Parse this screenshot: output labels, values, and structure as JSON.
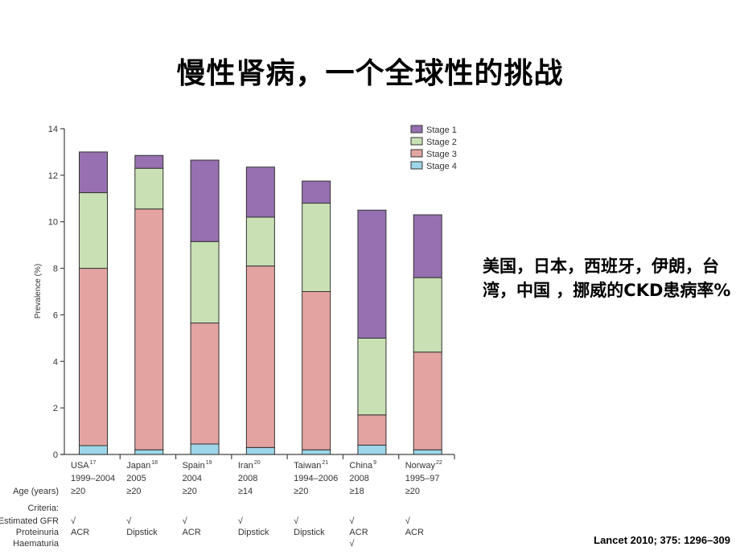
{
  "slide": {
    "title": "慢性肾病，一个全球性的挑战",
    "side_note": "美国，日本，西班牙，伊朗，台湾，中国 ，挪威的CKD患病率%",
    "citation": "Lancet 2010; 375: 1296–309"
  },
  "colors": {
    "stage1": "#9670b0",
    "stage2": "#c9e0b4",
    "stage3": "#e3a4a1",
    "stage4": "#9dd6e8",
    "bar_border": "#333333",
    "axis": "#444444"
  },
  "table_labels": {
    "age": "Age (years)",
    "criteria": "Criteria:",
    "egfr": "Estimated GFR",
    "proteinuria": "Proteinuria",
    "haematuria": "Haematuria"
  },
  "countries": [
    {
      "name": "USA",
      "ref": "17",
      "years": "1999–2004",
      "age": "≥20",
      "egfr": "√",
      "proteinuria": "ACR",
      "haematuria": ""
    },
    {
      "name": "Japan",
      "ref": "18",
      "years": "2005",
      "age": "≥20",
      "egfr": "√",
      "proteinuria": "Dipstick",
      "haematuria": ""
    },
    {
      "name": "Spain",
      "ref": "19",
      "years": "2004",
      "age": "≥20",
      "egfr": "√",
      "proteinuria": "ACR",
      "haematuria": ""
    },
    {
      "name": "Iran",
      "ref": "20",
      "years": "2008",
      "age": "≥14",
      "egfr": "√",
      "proteinuria": "Dipstick",
      "haematuria": ""
    },
    {
      "name": "Taiwan",
      "ref": "21",
      "years": "1994–2006",
      "age": "≥20",
      "egfr": "√",
      "proteinuria": "Dipstick",
      "haematuria": ""
    },
    {
      "name": "China",
      "ref": "9",
      "years": "2008",
      "age": "≥18",
      "egfr": "√",
      "proteinuria": "ACR",
      "haematuria": "√"
    },
    {
      "name": "Norway",
      "ref": "22",
      "years": "1995–97",
      "age": "≥20",
      "egfr": "√",
      "proteinuria": "ACR",
      "haematuria": ""
    }
  ],
  "chart_data": {
    "type": "bar",
    "stacked": true,
    "title": "",
    "xlabel": "",
    "ylabel": "Prevalence (%)",
    "ylim": [
      0,
      14
    ],
    "yticks": [
      0,
      2,
      4,
      6,
      8,
      10,
      12,
      14
    ],
    "grid": false,
    "legend_position": "top-right",
    "categories": [
      "USA",
      "Japan",
      "Spain",
      "Iran",
      "Taiwan",
      "China",
      "Norway"
    ],
    "series": [
      {
        "name": "Stage 4",
        "values": [
          0.38,
          0.2,
          0.45,
          0.3,
          0.2,
          0.4,
          0.2
        ]
      },
      {
        "name": "Stage 3",
        "values": [
          7.62,
          10.35,
          5.2,
          7.8,
          6.8,
          1.3,
          4.2
        ]
      },
      {
        "name": "Stage 2",
        "values": [
          3.25,
          1.75,
          3.5,
          2.1,
          3.8,
          3.3,
          3.2
        ]
      },
      {
        "name": "Stage 1",
        "values": [
          1.75,
          0.55,
          3.5,
          2.15,
          0.95,
          5.5,
          2.7
        ]
      }
    ],
    "totals": [
      13.0,
      12.85,
      12.65,
      12.35,
      11.75,
      10.5,
      10.3
    ],
    "legend": [
      "Stage 1",
      "Stage 2",
      "Stage 3",
      "Stage 4"
    ]
  }
}
